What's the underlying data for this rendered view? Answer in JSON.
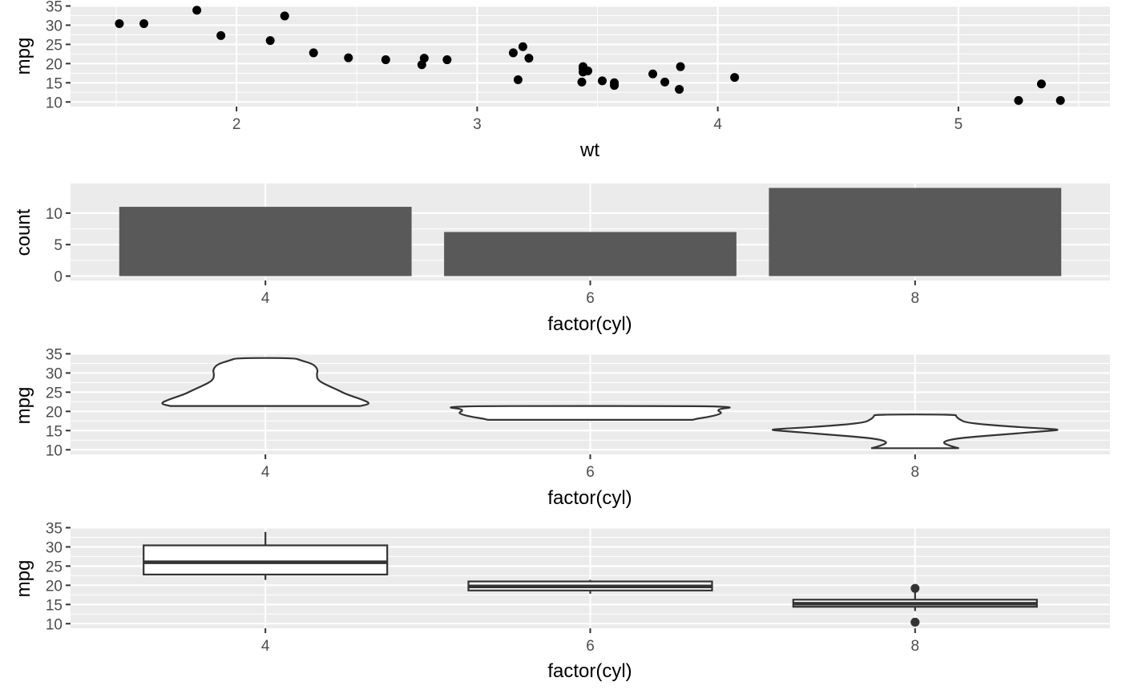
{
  "colors": {
    "panel_background": "#ebebeb",
    "grid": "#ffffff",
    "point": "#000000",
    "bar_fill": "#595959",
    "outline": "#333333",
    "tick_label": "#4d4d4d"
  },
  "chart_data": [
    {
      "type": "scatter",
      "xlabel": "wt",
      "ylabel": "mpg",
      "xlim": [
        1.31,
        5.63
      ],
      "ylim": [
        8.8,
        35.1
      ],
      "xticks": [
        2,
        3,
        4,
        5
      ],
      "xtick_labels": [
        "2",
        "3",
        "4",
        "5"
      ],
      "yticks": [
        10,
        15,
        20,
        25,
        30,
        35
      ],
      "ytick_labels": [
        "10",
        "15",
        "20",
        "25",
        "30",
        "35"
      ],
      "grid": true,
      "points": [
        {
          "x": 2.62,
          "y": 21.0
        },
        {
          "x": 2.875,
          "y": 21.0
        },
        {
          "x": 2.32,
          "y": 22.8
        },
        {
          "x": 3.215,
          "y": 21.4
        },
        {
          "x": 3.44,
          "y": 18.7
        },
        {
          "x": 3.46,
          "y": 18.1
        },
        {
          "x": 3.57,
          "y": 14.3
        },
        {
          "x": 3.19,
          "y": 24.4
        },
        {
          "x": 3.15,
          "y": 22.8
        },
        {
          "x": 3.44,
          "y": 19.2
        },
        {
          "x": 3.44,
          "y": 17.8
        },
        {
          "x": 4.07,
          "y": 16.4
        },
        {
          "x": 3.73,
          "y": 17.3
        },
        {
          "x": 3.78,
          "y": 15.2
        },
        {
          "x": 5.25,
          "y": 10.4
        },
        {
          "x": 5.424,
          "y": 10.4
        },
        {
          "x": 5.345,
          "y": 14.7
        },
        {
          "x": 2.2,
          "y": 32.4
        },
        {
          "x": 1.615,
          "y": 30.4
        },
        {
          "x": 1.835,
          "y": 33.9
        },
        {
          "x": 2.465,
          "y": 21.5
        },
        {
          "x": 3.52,
          "y": 15.5
        },
        {
          "x": 3.435,
          "y": 15.2
        },
        {
          "x": 3.84,
          "y": 13.3
        },
        {
          "x": 3.845,
          "y": 19.2
        },
        {
          "x": 1.935,
          "y": 27.3
        },
        {
          "x": 2.14,
          "y": 26.0
        },
        {
          "x": 1.513,
          "y": 30.4
        },
        {
          "x": 3.17,
          "y": 15.8
        },
        {
          "x": 2.77,
          "y": 19.7
        },
        {
          "x": 3.57,
          "y": 15.0
        },
        {
          "x": 2.78,
          "y": 21.4
        }
      ]
    },
    {
      "type": "bar",
      "xlabel": "factor(cyl)",
      "ylabel": "count",
      "categories": [
        "4",
        "6",
        "8"
      ],
      "values": [
        11,
        7,
        14
      ],
      "ylim": [
        -0.7,
        14.7
      ],
      "yticks": [
        0,
        5,
        10
      ],
      "ytick_labels": [
        "0",
        "5",
        "10"
      ],
      "grid": true
    },
    {
      "type": "violin",
      "xlabel": "factor(cyl)",
      "ylabel": "mpg",
      "categories": [
        "4",
        "6",
        "8"
      ],
      "ylim": [
        8.8,
        35.1
      ],
      "yticks": [
        10,
        15,
        20,
        25,
        30,
        35
      ],
      "ytick_labels": [
        "10",
        "15",
        "20",
        "25",
        "30",
        "35"
      ],
      "grid": true,
      "violins": [
        {
          "category": "4",
          "profile": [
            [
              21.4,
              0.65
            ],
            [
              22.0,
              0.72
            ],
            [
              23.0,
              0.67
            ],
            [
              24.5,
              0.55
            ],
            [
              25.5,
              0.5
            ],
            [
              26.5,
              0.44
            ],
            [
              28.0,
              0.36
            ],
            [
              29.5,
              0.35
            ],
            [
              30.8,
              0.36
            ],
            [
              32.3,
              0.33
            ],
            [
              33.3,
              0.24
            ],
            [
              33.9,
              0.2
            ]
          ]
        },
        {
          "category": "6",
          "profile": [
            [
              17.8,
              0.7
            ],
            [
              18.1,
              0.73
            ],
            [
              18.5,
              0.8
            ],
            [
              19.2,
              0.88
            ],
            [
              19.7,
              0.9
            ],
            [
              20.2,
              0.87
            ],
            [
              20.7,
              0.89
            ],
            [
              21.0,
              0.97
            ],
            [
              21.2,
              0.92
            ],
            [
              21.4,
              0.76
            ]
          ]
        },
        {
          "category": "8",
          "profile": [
            [
              10.4,
              0.3
            ],
            [
              11.0,
              0.24
            ],
            [
              12.0,
              0.18
            ],
            [
              13.0,
              0.28
            ],
            [
              14.0,
              0.6
            ],
            [
              15.0,
              0.94
            ],
            [
              15.3,
              1.0
            ],
            [
              16.0,
              0.66
            ],
            [
              17.0,
              0.35
            ],
            [
              18.0,
              0.3
            ],
            [
              18.7,
              0.28
            ],
            [
              19.2,
              0.28
            ]
          ]
        }
      ]
    },
    {
      "type": "boxplot",
      "xlabel": "factor(cyl)",
      "ylabel": "mpg",
      "categories": [
        "4",
        "6",
        "8"
      ],
      "ylim": [
        8.8,
        35.1
      ],
      "yticks": [
        10,
        15,
        20,
        25,
        30,
        35
      ],
      "ytick_labels": [
        "10",
        "15",
        "20",
        "25",
        "30",
        "35"
      ],
      "grid": true,
      "boxes": [
        {
          "category": "4",
          "whisker_low": 21.4,
          "q1": 22.8,
          "median": 26.0,
          "q3": 30.4,
          "whisker_high": 33.9,
          "outliers": []
        },
        {
          "category": "6",
          "whisker_low": 17.8,
          "q1": 18.65,
          "median": 19.7,
          "q3": 21.0,
          "whisker_high": 21.4,
          "outliers": []
        },
        {
          "category": "8",
          "whisker_low": 13.3,
          "q1": 14.4,
          "median": 15.2,
          "q3": 16.25,
          "whisker_high": 18.7,
          "outliers": [
            10.4,
            10.4,
            19.2
          ]
        }
      ]
    }
  ]
}
